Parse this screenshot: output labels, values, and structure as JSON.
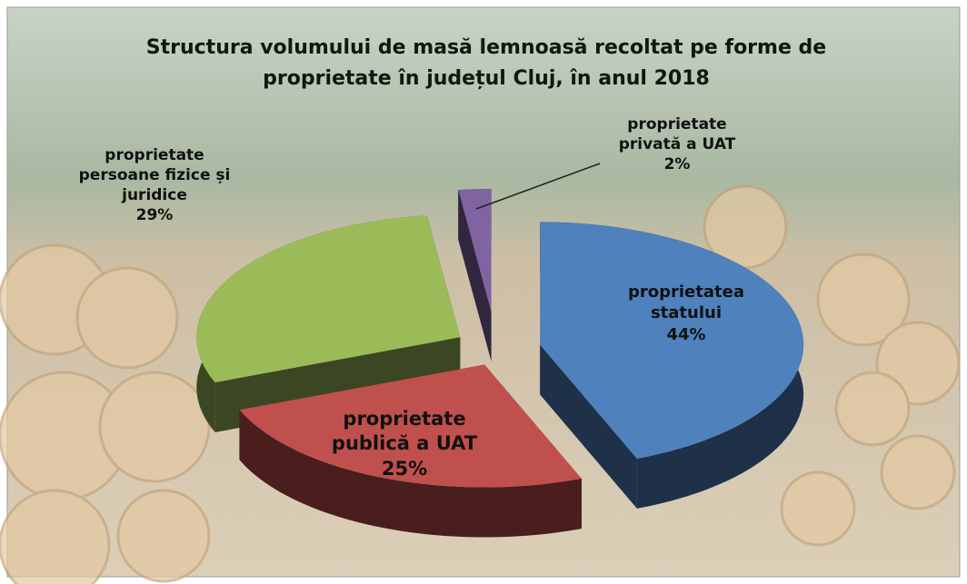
{
  "chart_data": {
    "type": "pie3d",
    "title": "Structura volumului de masă lemnoasă recoltat  pe forme de proprietate în județul Cluj, în anul 2018",
    "categories": [
      "proprietatea statului",
      "proprietate publică a UAT",
      "proprietate persoane fizice și juridice",
      "proprietate privată a UAT"
    ],
    "values": [
      44,
      25,
      29,
      2
    ],
    "value_labels": [
      "44%",
      "25%",
      "29%",
      "2%"
    ],
    "colors": [
      "#4f81bd",
      "#c0504d",
      "#9bbb59",
      "#8064a2"
    ]
  }
}
